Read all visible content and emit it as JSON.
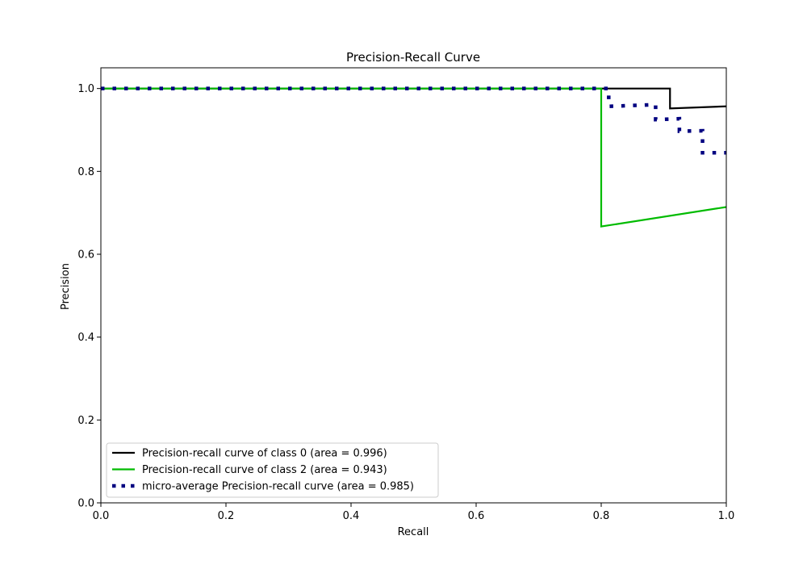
{
  "chart_data": {
    "type": "line",
    "title": "Precision-Recall Curve",
    "xlabel": "Recall",
    "ylabel": "Precision",
    "xlim": [
      0.0,
      1.0
    ],
    "ylim": [
      0.0,
      1.05
    ],
    "xticks": [
      "0.0",
      "0.2",
      "0.4",
      "0.6",
      "0.8",
      "1.0"
    ],
    "yticks": [
      "0.0",
      "0.2",
      "0.4",
      "0.6",
      "0.8",
      "1.0"
    ],
    "grid": false,
    "legend_position": "lower-left",
    "series": [
      {
        "name": "Precision-recall curve of class 0 (area = 0.996)",
        "color": "#000000",
        "style": "solid",
        "x": [
          0.0,
          0.91,
          0.91,
          1.0
        ],
        "y": [
          1.0,
          1.0,
          0.952,
          0.957
        ]
      },
      {
        "name": "Precision-recall curve of class 2 (area = 0.943)",
        "color": "#00bb00",
        "style": "solid",
        "x": [
          0.0,
          0.8,
          0.8,
          1.0
        ],
        "y": [
          1.0,
          1.0,
          0.667,
          0.714
        ]
      },
      {
        "name": "micro-average Precision-recall curve (area = 0.985)",
        "color": "#000080",
        "style": "dotted",
        "x": [
          0.0,
          0.812,
          0.812,
          0.887,
          0.887,
          0.925,
          0.925,
          0.962,
          0.962,
          1.0
        ],
        "y": [
          1.0,
          1.0,
          0.957,
          0.961,
          0.925,
          0.927,
          0.897,
          0.898,
          0.845,
          0.845
        ]
      }
    ]
  }
}
